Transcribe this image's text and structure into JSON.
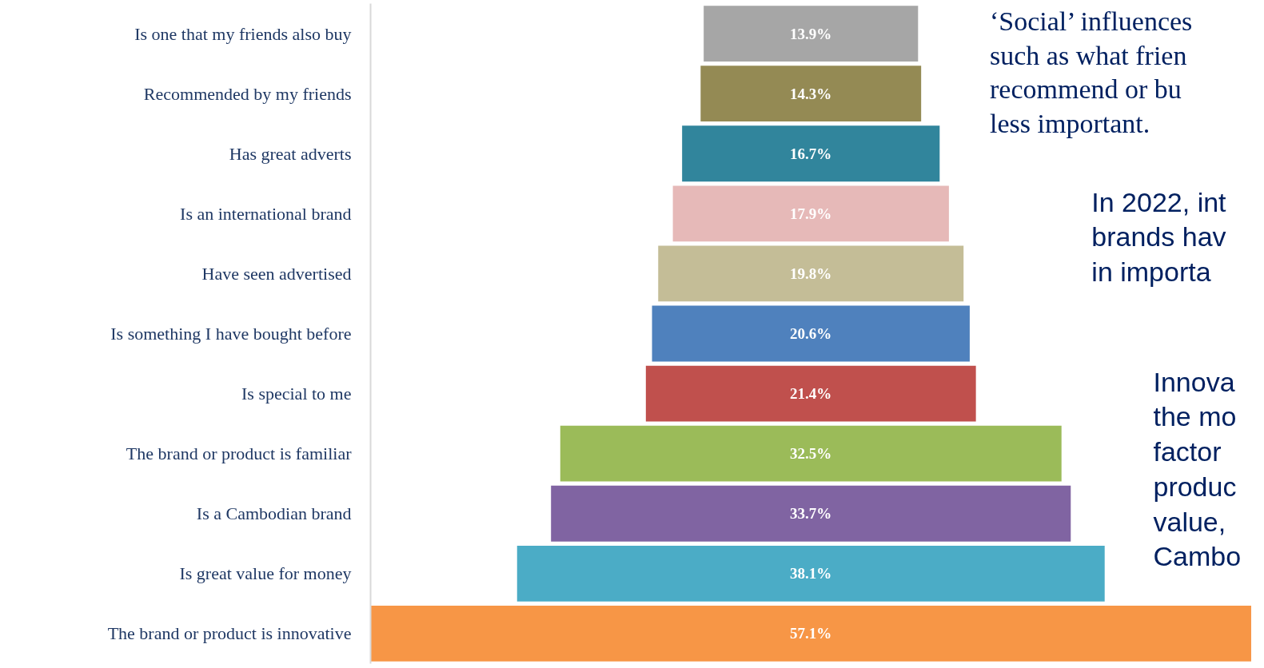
{
  "chart_data": {
    "type": "other",
    "categories": [
      "Is one that my friends also buy",
      "Recommended by my friends",
      "Has great adverts",
      "Is an international brand",
      "Have seen advertised",
      "Is something I have bought before",
      "Is special to me",
      "The brand or product is familiar",
      "Is a Cambodian brand",
      "Is great value for money",
      "The brand or product is innovative"
    ],
    "values": [
      13.9,
      14.3,
      16.7,
      17.9,
      19.8,
      20.6,
      21.4,
      32.5,
      33.7,
      38.1,
      57.1
    ],
    "colors": [
      "#a6a6a6",
      "#948a54",
      "#31859c",
      "#e6b9b8",
      "#c4bd97",
      "#4f81bd",
      "#c0504d",
      "#9bbb59",
      "#8064a2",
      "#4bacc6",
      "#f79646"
    ],
    "value_labels": [
      "13.9%",
      "14.3%",
      "16.7%",
      "17.9%",
      "19.8%",
      "20.6%",
      "21.4%",
      "32.5%",
      "33.7%",
      "38.1%",
      "57.1%"
    ],
    "annotations": [
      "‘Social’ influences\nsuch as what frien\nrecommend or bu\nless important.",
      "In 2022, int\nbrands hav\nin importa",
      "Innova\nthe mo\nfactor\nproduc\nvalue, \nCambo"
    ]
  }
}
